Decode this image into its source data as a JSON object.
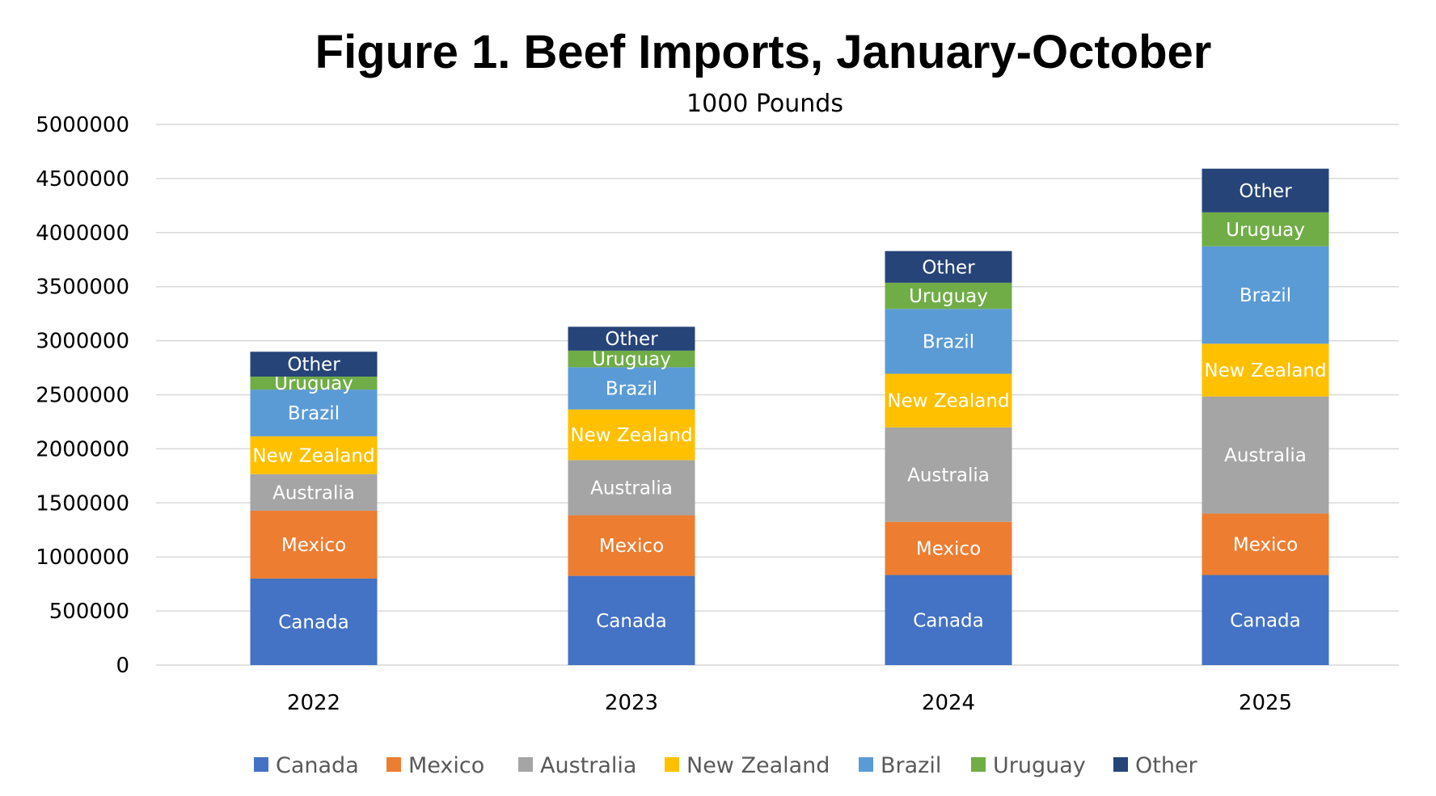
{
  "chart_data": {
    "type": "bar",
    "stacked": true,
    "title": "Figure 1. Beef Imports, January-October",
    "subtitle": "1000 Pounds",
    "xlabel": "",
    "ylabel": "",
    "categories": [
      "2022",
      "2023",
      "2024",
      "2025"
    ],
    "ylim": [
      0,
      5000000
    ],
    "yticks": [
      "0",
      "500000",
      "1000000",
      "1500000",
      "2000000",
      "2500000",
      "3000000",
      "3500000",
      "4000000",
      "4500000",
      "5000000"
    ],
    "grid": true,
    "legend_position": "bottom",
    "series": [
      {
        "name": "Canada",
        "color": "#4472C4",
        "values": [
          800000,
          825000,
          833000,
          833000
        ]
      },
      {
        "name": "Mexico",
        "color": "#ED7D31",
        "values": [
          628000,
          561000,
          492000,
          568000
        ]
      },
      {
        "name": "Australia",
        "color": "#A5A5A5",
        "values": [
          338000,
          510000,
          873000,
          1083000
        ]
      },
      {
        "name": "New Zealand",
        "color": "#FFC000",
        "values": [
          350000,
          468000,
          496000,
          488000
        ]
      },
      {
        "name": "Brazil",
        "color": "#5B9BD5",
        "values": [
          432000,
          391000,
          600000,
          901000
        ]
      },
      {
        "name": "Uruguay",
        "color": "#70AD47",
        "values": [
          120000,
          153000,
          242000,
          314000
        ]
      },
      {
        "name": "Other",
        "color": "#264478",
        "values": [
          230000,
          221000,
          293000,
          404000
        ]
      }
    ]
  }
}
